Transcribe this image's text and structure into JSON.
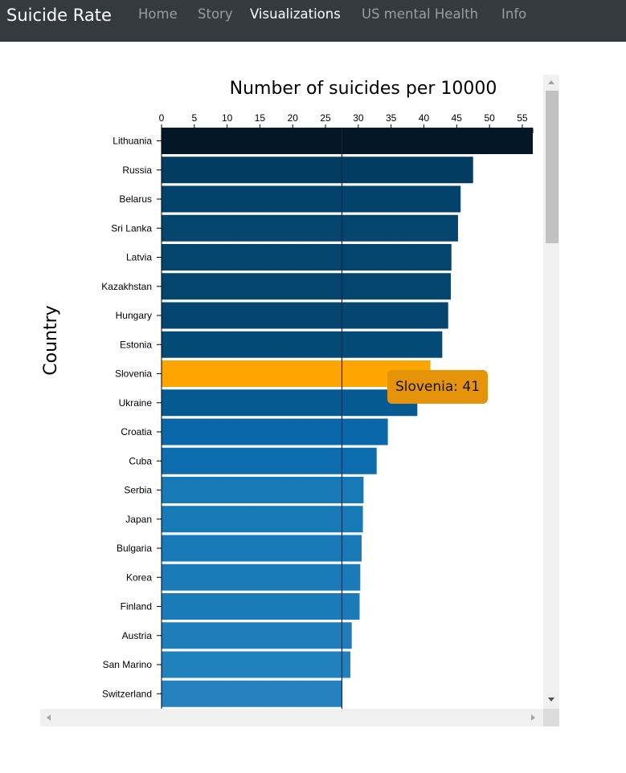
{
  "navbar": {
    "brand": "Suicide Rate",
    "links": [
      {
        "label": "Home",
        "active": false
      },
      {
        "label": "Story",
        "active": false
      },
      {
        "label": "Visualizations",
        "active": true
      },
      {
        "label": "US mental Health",
        "active": false
      },
      {
        "label": "Info",
        "active": false
      }
    ]
  },
  "colors": {
    "navbar_bg": "#353a40",
    "highlight": "#ffa500",
    "tooltip_bg": "#e5940a",
    "bar_dark": "#031726",
    "bar_light": "#2481bd"
  },
  "tooltip": {
    "text": "Slovenia: 41"
  },
  "chart_data": {
    "type": "bar",
    "orientation": "horizontal",
    "title": "Number of suicides per 10000",
    "xlabel": "",
    "ylabel": "Country",
    "xlim": [
      0,
      56.6
    ],
    "xticks": [
      0,
      5,
      10,
      15,
      20,
      25,
      30,
      35,
      40,
      45,
      50,
      55
    ],
    "reference_line": 27.5,
    "highlighted": "Slovenia",
    "categories": [
      "Lithuania",
      "Russia",
      "Belarus",
      "Sri Lanka",
      "Latvia",
      "Kazakhstan",
      "Hungary",
      "Estonia",
      "Slovenia",
      "Ukraine",
      "Croatia",
      "Cuba",
      "Serbia",
      "Japan",
      "Bulgaria",
      "Korea",
      "Finland",
      "Austria",
      "San Marino",
      "Switzerland"
    ],
    "values": [
      56.6,
      47.5,
      45.6,
      45.2,
      44.2,
      44.1,
      43.7,
      42.8,
      41,
      39,
      34.5,
      32.8,
      30.8,
      30.7,
      30.5,
      30.3,
      30.2,
      29,
      28.8,
      27.5
    ],
    "colors": [
      "#031726",
      "#033c61",
      "#03426b",
      "#04446d",
      "#04456e",
      "#04456e",
      "#044670",
      "#044a76",
      "#ffa500",
      "#065a92",
      "#0a68a9",
      "#0d6cae",
      "#1779b6",
      "#1779b6",
      "#1779b6",
      "#1a7bb8",
      "#1a7bb8",
      "#1f7eba",
      "#2181bc",
      "#2481bd"
    ]
  }
}
